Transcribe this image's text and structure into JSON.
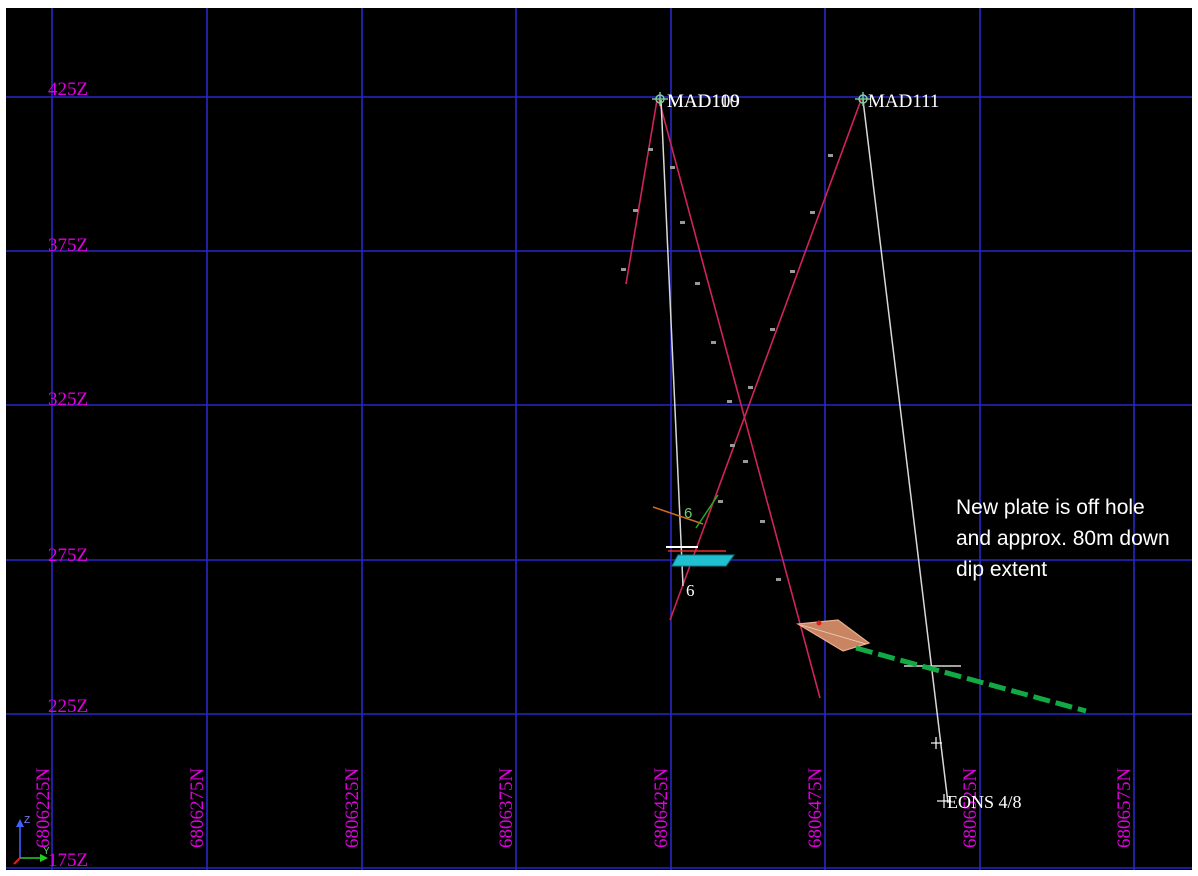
{
  "colors": {
    "background": "#000000",
    "grid": "#2727c8",
    "axis_label": "#e000e0",
    "hole_trace": "#d8d8d8",
    "planned_trace": "#d02458",
    "interpretation": "#11aa44",
    "plate_new": "#c98562",
    "plate_old": "#20c0d0",
    "label_text": "#ffffff"
  },
  "z_labels": [
    "425Z",
    "375Z",
    "325Z",
    "275Z",
    "225Z",
    "175Z"
  ],
  "n_labels": [
    "6806225N",
    "6806275N",
    "6806325N",
    "6806375N",
    "6806425N",
    "6806475N",
    "6806525N",
    "6806575N"
  ],
  "hole_labels": {
    "mad109": "MAD109",
    "mad110": "MAD110",
    "mad111": "MAD111",
    "eons": "EONS 4/8",
    "marker_six_upper": "6",
    "marker_six_lower": "6"
  },
  "note": "New plate is off hole and approx. 80m down dip extent",
  "axes_icon": {
    "z": "Z",
    "y": "Y"
  }
}
